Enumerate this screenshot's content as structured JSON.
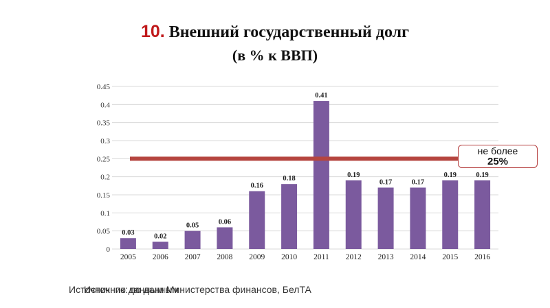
{
  "title": {
    "number": "10.",
    "main": "Внешний государственный долг",
    "sub": "(в % к ВВП)"
  },
  "limit_label": {
    "line1": "не более",
    "line2": "25%",
    "value": 0.25,
    "color": "#b5453f"
  },
  "source": {
    "text": "Источник: по данным Министерства финансов, БелТА",
    "overlap_text": "Источник: по данным"
  },
  "colors": {
    "bar": "#7b5a9e",
    "grid": "#d9d9d9"
  },
  "chart_data": {
    "type": "bar",
    "categories": [
      "2005",
      "2006",
      "2007",
      "2008",
      "2009",
      "2010",
      "2011",
      "2012",
      "2013",
      "2014",
      "2015",
      "2016"
    ],
    "values": [
      0.03,
      0.02,
      0.05,
      0.06,
      0.16,
      0.18,
      0.41,
      0.19,
      0.17,
      0.17,
      0.19,
      0.19
    ],
    "value_labels": [
      "0.03",
      "0.02",
      "0.05",
      "0.06",
      "0.16",
      "0.18",
      "0.41",
      "0.19",
      "0.17",
      "0.17",
      "0.19",
      "0.19"
    ],
    "yticks": [
      "0",
      "0.05",
      "0.1",
      "0.15",
      "0.2",
      "0.25",
      "0.3",
      "0.35",
      "0.4",
      "0.45"
    ],
    "ylim": [
      0,
      0.45
    ],
    "grid": true,
    "title": "",
    "xlabel": "",
    "ylabel": ""
  }
}
